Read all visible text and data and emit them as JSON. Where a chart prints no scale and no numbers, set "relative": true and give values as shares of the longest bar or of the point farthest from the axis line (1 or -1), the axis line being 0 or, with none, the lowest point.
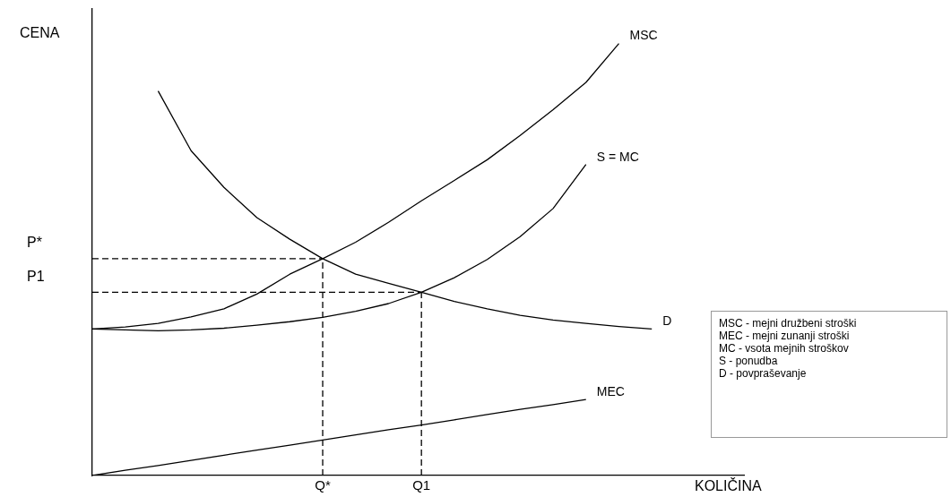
{
  "chart_data": {
    "type": "line",
    "relative": true,
    "ylabel": "CENA",
    "xlabel": "KOLIČINA",
    "grid": false,
    "legend": false,
    "marker": "none",
    "tick_labels": "x",
    "categories": [
      null,
      null,
      null,
      null,
      null,
      null,
      null,
      "Q*",
      null,
      null,
      "Q1",
      null,
      null,
      null,
      null,
      null,
      null,
      null,
      null,
      null
    ],
    "series": [
      {
        "name": "MSC",
        "color": "#000000",
        "values": [
          0.339,
          0.344,
          0.352,
          0.367,
          0.386,
          0.42,
          0.466,
          0.502,
          0.54,
          0.586,
          0.636,
          0.683,
          0.731,
          0.787,
          0.847,
          0.91,
          1,
          null,
          null,
          null
        ]
      },
      {
        "name": "S = MC",
        "color": "#000000",
        "values": [
          0.339,
          0.337,
          0.335,
          0.337,
          0.341,
          0.348,
          0.356,
          0.366,
          0.38,
          0.398,
          0.424,
          0.458,
          0.5,
          0.553,
          0.618,
          0.72,
          null,
          null,
          null,
          null
        ]
      },
      {
        "name": "D",
        "color": "#000000",
        "values": [
          null,
          null,
          0.89,
          0.752,
          0.667,
          0.597,
          0.547,
          0.502,
          0.466,
          0.445,
          0.424,
          0.403,
          0.386,
          0.371,
          0.36,
          0.352,
          0.345,
          0.339,
          null,
          null
        ]
      },
      {
        "name": "MEC",
        "color": "#000000",
        "values": [
          0,
          0.012,
          0.023,
          0.035,
          0.047,
          0.059,
          0.07,
          0.082,
          0.094,
          0.106,
          0.117,
          0.129,
          0.141,
          0.153,
          0.164,
          0.176,
          null,
          null,
          null,
          null
        ]
      },
      {
        "color": "#000000",
        "line_style": "dashed",
        "values": [
          0.502,
          0.502,
          0.502,
          0.502,
          0.502,
          0.502,
          0.502,
          0.502,
          null,
          null,
          null,
          null,
          null,
          null,
          null,
          null,
          null,
          null,
          null,
          null
        ]
      },
      {
        "color": "#000000",
        "line_style": "dashed",
        "values": [
          0.424,
          0.424,
          0.424,
          0.424,
          0.424,
          0.424,
          0.424,
          0.424,
          0.424,
          0.424,
          0.424,
          null,
          null,
          null,
          null,
          null,
          null,
          null,
          null,
          null
        ]
      },
      {
        "color": "#000000",
        "line_style": "dashed",
        "x": [
          "Q*",
          "Q*"
        ],
        "values": [
          0,
          0.502
        ]
      },
      {
        "color": "#000000",
        "line_style": "dashed",
        "x": [
          "Q1",
          "Q1"
        ],
        "values": [
          0,
          0.424
        ]
      }
    ],
    "annotations": [
      "P*",
      "P1",
      "MSC - mejni družbeni stroški",
      "MEC - mejni zunanji stroški",
      "MC - vsota mejnih stroškov",
      "S - ponudba",
      "D - povpraševanje"
    ]
  }
}
